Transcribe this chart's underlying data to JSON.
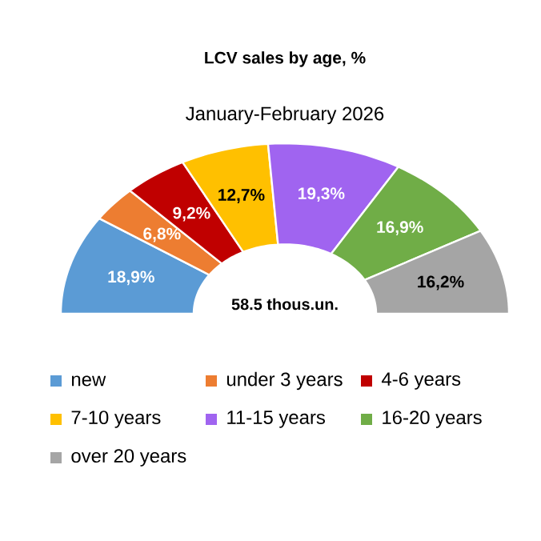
{
  "chart_data": {
    "type": "donut",
    "title": "LCV sales by age, %",
    "subtitle": "January-February 2026",
    "categories": [
      "new",
      "under 3 years",
      "4-6 years",
      "7-10 years",
      "11-15 years",
      "16-20 years",
      "over 20 years"
    ],
    "values": [
      18.9,
      6.8,
      9.2,
      12.7,
      19.3,
      16.9,
      16.2
    ],
    "value_labels": [
      "18,9%",
      "6,8%",
      "9,2%",
      "12,7%",
      "19,3%",
      "16,9%",
      "16,2%"
    ],
    "colors": [
      "#5b9bd5",
      "#ed7d31",
      "#c00000",
      "#ffc000",
      "#a064f0",
      "#70ad47",
      "#a5a5a5"
    ],
    "annotations": [
      "58.5 thous.un."
    ],
    "legend": "bottom"
  }
}
